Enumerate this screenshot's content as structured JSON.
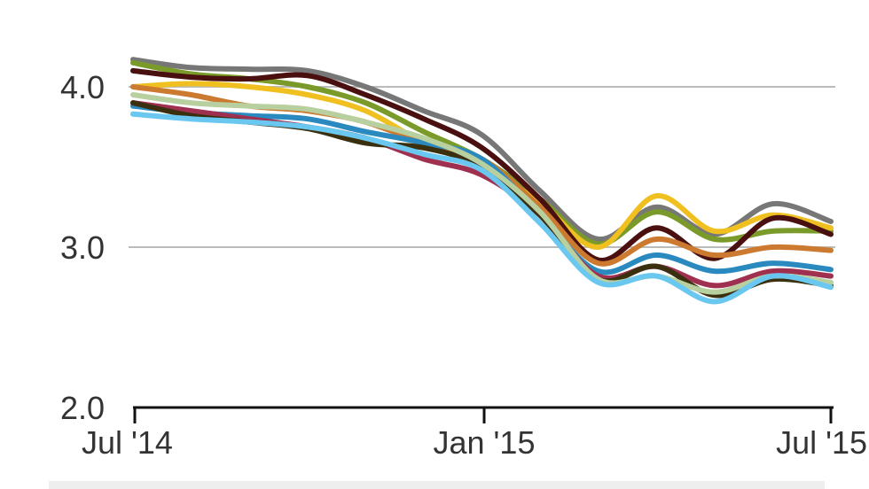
{
  "chart_data": {
    "type": "line",
    "title": "",
    "xlabel": "",
    "ylabel": "",
    "ylim": [
      2.0,
      4.0
    ],
    "y_ticks": [
      {
        "value": 4.0,
        "label": "4.0"
      },
      {
        "value": 3.0,
        "label": "3.0"
      },
      {
        "value": 2.0,
        "label": "2.0"
      }
    ],
    "x_ticks": [
      {
        "label": "Jul '14"
      },
      {
        "label": "Jan '15"
      },
      {
        "label": "Jul '15"
      }
    ],
    "grid": true,
    "legend": "none",
    "x_count": 13,
    "series": [
      {
        "color": "#777777",
        "values": [
          4.17,
          4.12,
          4.11,
          4.1,
          4.0,
          3.85,
          3.7,
          3.35,
          3.05,
          3.25,
          3.08,
          3.27,
          3.16
        ]
      },
      {
        "color": "#7a9a2a",
        "values": [
          4.15,
          4.08,
          4.05,
          4.0,
          3.9,
          3.72,
          3.55,
          3.3,
          3.02,
          3.22,
          3.05,
          3.1,
          3.1
        ]
      },
      {
        "color": "#f0c020",
        "values": [
          4.0,
          4.02,
          4.0,
          3.95,
          3.85,
          3.65,
          3.5,
          3.28,
          3.0,
          3.32,
          3.1,
          3.2,
          3.12
        ]
      },
      {
        "color": "#4a1010",
        "values": [
          4.1,
          4.06,
          4.05,
          4.07,
          3.95,
          3.8,
          3.62,
          3.3,
          2.92,
          3.12,
          2.93,
          3.18,
          3.08
        ]
      },
      {
        "color": "#cc7a30",
        "values": [
          4.0,
          3.95,
          3.88,
          3.85,
          3.78,
          3.65,
          3.55,
          3.25,
          2.9,
          3.05,
          2.95,
          3.0,
          2.98
        ]
      },
      {
        "color": "#2a8ac0",
        "values": [
          3.88,
          3.84,
          3.82,
          3.8,
          3.72,
          3.65,
          3.55,
          3.2,
          2.85,
          2.95,
          2.85,
          2.9,
          2.86
        ]
      },
      {
        "color": "#a03050",
        "values": [
          3.9,
          3.85,
          3.8,
          3.75,
          3.68,
          3.55,
          3.45,
          3.2,
          2.82,
          2.88,
          2.76,
          2.85,
          2.82
        ]
      },
      {
        "color": "#3a3010",
        "values": [
          3.9,
          3.82,
          3.78,
          3.74,
          3.65,
          3.62,
          3.5,
          3.2,
          2.8,
          2.88,
          2.7,
          2.8,
          2.76
        ]
      },
      {
        "color": "#b8d0a0",
        "values": [
          3.95,
          3.9,
          3.88,
          3.86,
          3.78,
          3.68,
          3.52,
          3.22,
          2.8,
          2.82,
          2.72,
          2.82,
          2.78
        ]
      },
      {
        "color": "#6ac8f0",
        "values": [
          3.83,
          3.8,
          3.78,
          3.75,
          3.68,
          3.58,
          3.48,
          3.15,
          2.78,
          2.82,
          2.66,
          2.82,
          2.75
        ]
      }
    ]
  }
}
